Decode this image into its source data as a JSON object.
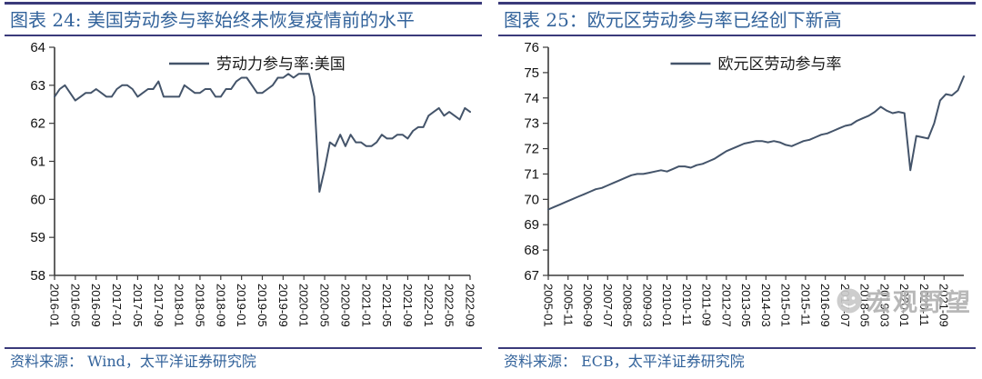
{
  "colors": {
    "accent_border": "#3A3A7A",
    "title_blue": "#33639B",
    "line": "#44546A",
    "axis": "#3a3a3a",
    "watermark_gray": "#b2b2b2"
  },
  "watermark": {
    "text": "宏观野望",
    "icon": "smiley-face-emoji"
  },
  "chart_data": [
    {
      "type": "line",
      "title": "图表 24: 美国劳动参与率始终未恢复疫情前的水平",
      "source": "资料来源：  Wind，太平洋证券研究院",
      "legend": "劳动力参与率:美国",
      "ylim": [
        58,
        64
      ],
      "y_tick_step": 1,
      "y_tick_labels": [
        "58",
        "59",
        "60",
        "61",
        "62",
        "63",
        "64"
      ],
      "x_frequency": "monthly",
      "x_start": "2016-01",
      "x_end": "2022-09",
      "months_per_point": 1,
      "x_total_months": 80,
      "x_tick_interval_months": 4,
      "x_tick_labels": [
        "2016-01",
        "2016-05",
        "2016-09",
        "2017-01",
        "2017-05",
        "2017-09",
        "2018-01",
        "2018-05",
        "2018-09",
        "2019-01",
        "2019-05",
        "2019-09",
        "2020-01",
        "2020-05",
        "2020-09",
        "2021-01",
        "2021-05",
        "2021-09",
        "2022-01",
        "2022-05",
        "2022-09"
      ],
      "legend_position": "top-center",
      "grid": false,
      "values": [
        62.7,
        62.9,
        63.0,
        62.8,
        62.6,
        62.7,
        62.8,
        62.8,
        62.9,
        62.8,
        62.7,
        62.7,
        62.9,
        63.0,
        63.0,
        62.9,
        62.7,
        62.8,
        62.9,
        62.9,
        63.1,
        62.7,
        62.7,
        62.7,
        62.7,
        63.0,
        62.9,
        62.8,
        62.8,
        62.9,
        62.9,
        62.7,
        62.7,
        62.9,
        62.9,
        63.1,
        63.2,
        63.2,
        63.0,
        62.8,
        62.8,
        62.9,
        63.0,
        63.2,
        63.2,
        63.3,
        63.2,
        63.3,
        63.3,
        63.3,
        62.7,
        60.2,
        60.8,
        61.5,
        61.4,
        61.7,
        61.4,
        61.7,
        61.5,
        61.5,
        61.4,
        61.4,
        61.5,
        61.7,
        61.6,
        61.6,
        61.7,
        61.7,
        61.6,
        61.8,
        61.9,
        61.9,
        62.2,
        62.3,
        62.4,
        62.2,
        62.3,
        62.2,
        62.1,
        62.4,
        62.3
      ]
    },
    {
      "type": "line",
      "title": "图表 25：欧元区劳动参与率已经创下新高",
      "source": "资料来源：  ECB，太平洋证券研究院",
      "legend": "欧元区劳动参与率",
      "ylim": [
        67,
        76
      ],
      "y_tick_step": 1,
      "y_tick_labels": [
        "67",
        "68",
        "69",
        "70",
        "71",
        "72",
        "73",
        "74",
        "75",
        "76"
      ],
      "x_frequency": "quarterly",
      "x_start": "2005-01",
      "x_end": "2022-07",
      "months_per_point": 3,
      "x_total_months": 210,
      "x_tick_interval_months": 10,
      "x_tick_labels": [
        "2005-01",
        "2005-11",
        "2006-09",
        "2007-07",
        "2008-05",
        "2009-03",
        "2010-01",
        "2010-11",
        "2011-09",
        "2012-07",
        "2013-05",
        "2014-03",
        "2015-01",
        "2015-11",
        "2016-09",
        "2017-07",
        "2018-05",
        "2019-03",
        "2020-01",
        "2020-11",
        "2021-09"
      ],
      "legend_position": "top-center",
      "grid": false,
      "values": [
        69.6,
        69.7,
        69.8,
        69.9,
        70.0,
        70.1,
        70.2,
        70.3,
        70.4,
        70.45,
        70.55,
        70.65,
        70.75,
        70.85,
        70.95,
        71.0,
        71.0,
        71.05,
        71.1,
        71.15,
        71.1,
        71.2,
        71.3,
        71.3,
        71.25,
        71.35,
        71.4,
        71.5,
        71.6,
        71.75,
        71.9,
        72.0,
        72.1,
        72.2,
        72.25,
        72.3,
        72.3,
        72.25,
        72.3,
        72.25,
        72.15,
        72.1,
        72.2,
        72.3,
        72.35,
        72.45,
        72.55,
        72.6,
        72.7,
        72.8,
        72.9,
        72.95,
        73.1,
        73.2,
        73.3,
        73.45,
        73.65,
        73.5,
        73.4,
        73.45,
        73.4,
        71.15,
        72.5,
        72.45,
        72.4,
        73.0,
        73.9,
        74.15,
        74.1,
        74.3,
        74.85
      ]
    }
  ]
}
